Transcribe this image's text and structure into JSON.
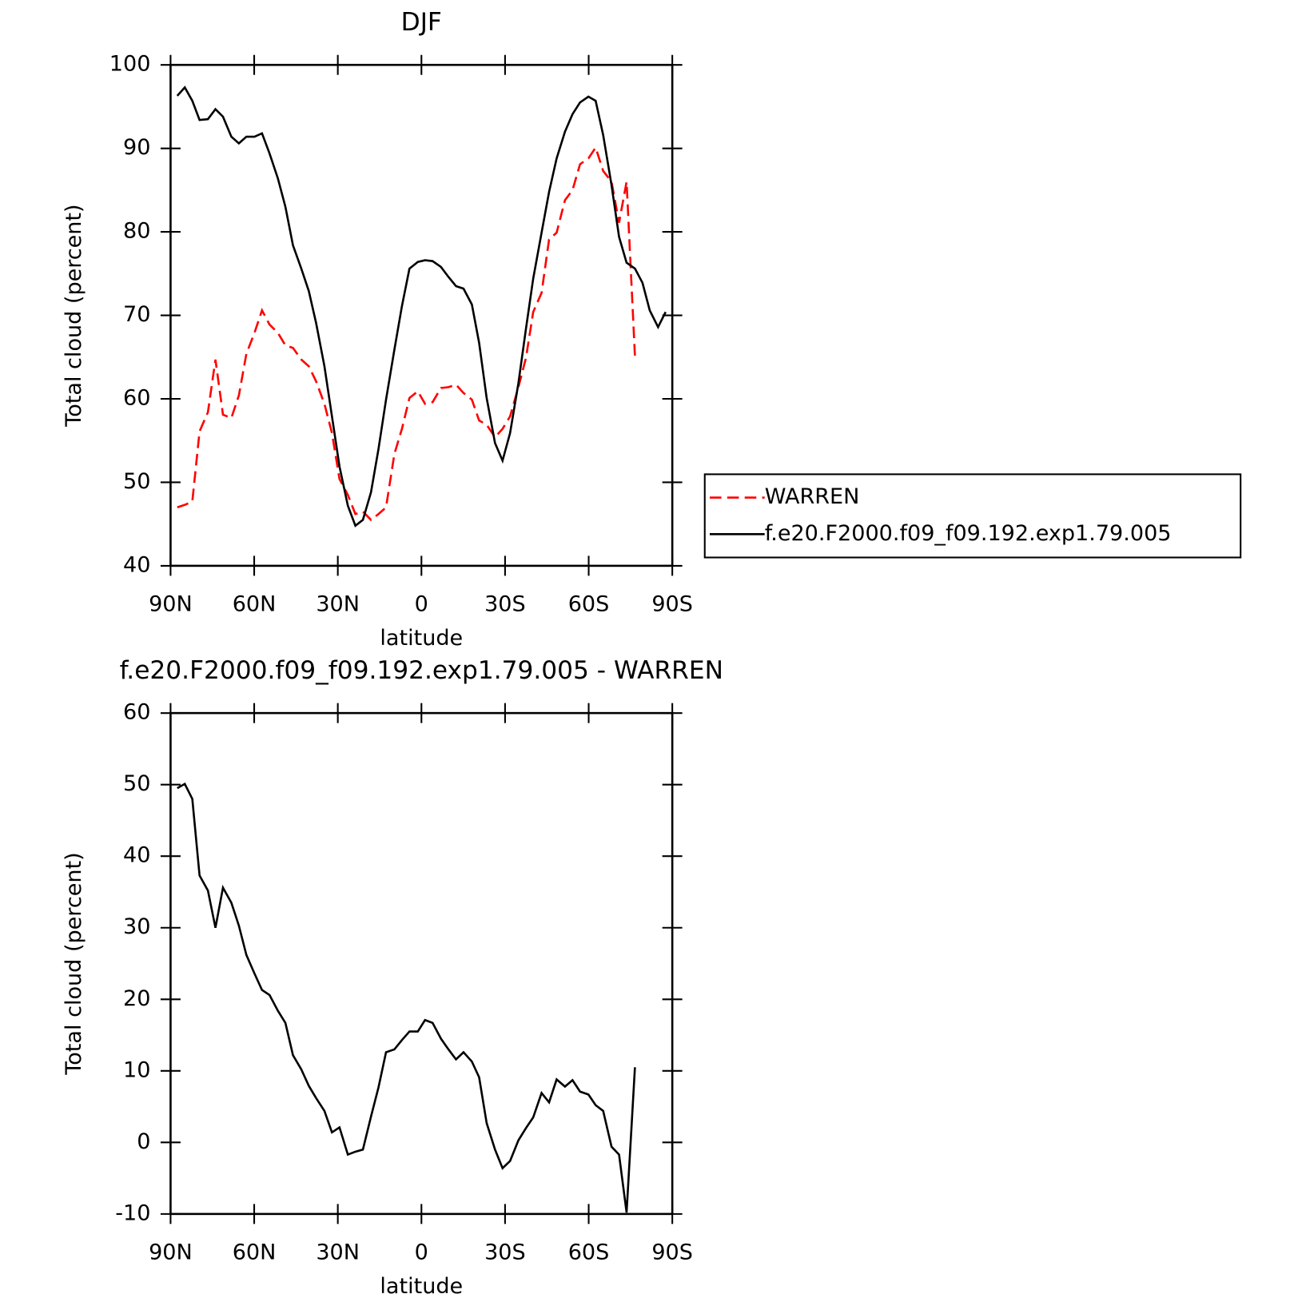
{
  "chart_data": [
    {
      "type": "line",
      "title": "DJF",
      "x_label": "latitude",
      "y_label": "Total cloud (percent)",
      "x": [
        87.6,
        84.9,
        82.2,
        79.6,
        76.6,
        73.9,
        71.2,
        68.2,
        65.5,
        62.8,
        59.9,
        57.2,
        54.5,
        51.5,
        48.8,
        46.1,
        43.1,
        40.4,
        37.8,
        34.8,
        32.1,
        29.4,
        26.4,
        23.7,
        21.0,
        18.1,
        15.4,
        12.7,
        9.7,
        7.0,
        4.3,
        1.3,
        -1.3,
        -4.0,
        -7.0,
        -9.7,
        -12.4,
        -15.1,
        -18.1,
        -20.7,
        -23.4,
        -26.4,
        -29.1,
        -31.8,
        -34.8,
        -37.5,
        -40.1,
        -43.1,
        -45.8,
        -48.5,
        -51.5,
        -54.2,
        -56.9,
        -59.9,
        -62.5,
        -65.2,
        -68.2,
        -70.9,
        -73.6,
        -76.6,
        -79.3,
        -81.9,
        -84.9,
        -87.6
      ],
      "series": [
        {
          "name": "WARREN",
          "color": "#ff0000",
          "style": "dashed",
          "values": [
            47.0,
            47.3,
            47.7,
            56.1,
            58.4,
            64.7,
            58.1,
            57.7,
            60.4,
            65.4,
            67.9,
            70.6,
            68.9,
            67.9,
            66.4,
            66.1,
            64.7,
            63.9,
            62.1,
            59.4,
            55.9,
            50.4,
            48.5,
            46.2,
            46.5,
            45.5,
            46.2,
            47.0,
            53.4,
            56.4,
            60.1,
            60.9,
            59.4,
            59.6,
            61.3,
            61.4,
            61.7,
            60.7,
            59.9,
            57.4,
            56.9,
            55.4,
            56.4,
            57.9,
            61.4,
            64.9,
            70.4,
            72.7,
            79.1,
            79.9,
            83.8,
            85.0,
            88.1,
            88.8,
            90.1,
            87.3,
            86.0,
            81.1,
            86.0,
            65.1,
            null,
            null,
            null,
            null
          ]
        },
        {
          "name": "f.e20.F2000.f09_f09.192.exp1.79.005",
          "color": "#000000",
          "style": "solid",
          "values": [
            96.3,
            97.3,
            95.7,
            93.4,
            93.5,
            94.7,
            93.8,
            91.4,
            90.6,
            91.4,
            91.4,
            91.8,
            89.4,
            86.4,
            83.0,
            78.4,
            75.6,
            72.9,
            69.1,
            63.9,
            57.9,
            51.9,
            47.2,
            44.8,
            45.5,
            48.8,
            54.0,
            59.9,
            65.9,
            71.1,
            75.6,
            76.4,
            76.6,
            76.5,
            75.8,
            74.6,
            73.5,
            73.2,
            71.3,
            66.7,
            60.1,
            54.7,
            52.6,
            55.9,
            61.9,
            68.4,
            74.4,
            79.9,
            84.8,
            88.8,
            92.0,
            94.1,
            95.5,
            96.2,
            95.7,
            91.6,
            85.6,
            79.4,
            76.3,
            75.6,
            73.9,
            70.6,
            68.6,
            70.4
          ]
        }
      ],
      "xlim": [
        90,
        -90
      ],
      "xticks": [
        {
          "value": 90,
          "label": "90N"
        },
        {
          "value": 60,
          "label": "60N"
        },
        {
          "value": 30,
          "label": "30N"
        },
        0,
        {
          "value": -30,
          "label": "30S"
        },
        {
          "value": -60,
          "label": "60S"
        },
        {
          "value": -90,
          "label": "90S"
        }
      ],
      "ylim": [
        40,
        100
      ],
      "yticks": [
        40,
        50,
        60,
        70,
        80,
        90,
        100
      ],
      "legend": "right"
    },
    {
      "type": "line",
      "title": "f.e20.F2000.f09_f09.192.exp1.79.005 - WARREN",
      "x_label": "latitude",
      "y_label": "Total cloud (percent)",
      "x": [
        87.6,
        84.9,
        82.2,
        79.6,
        76.6,
        73.9,
        71.2,
        68.2,
        65.5,
        62.8,
        59.9,
        57.2,
        54.5,
        51.5,
        48.8,
        46.1,
        43.1,
        40.4,
        37.8,
        34.8,
        32.1,
        29.4,
        26.4,
        23.7,
        21.0,
        18.1,
        15.4,
        12.7,
        9.7,
        7.0,
        4.3,
        1.3,
        -1.3,
        -4.0,
        -7.0,
        -9.7,
        -12.4,
        -15.1,
        -18.1,
        -20.7,
        -23.4,
        -26.4,
        -29.1,
        -31.8,
        -34.8,
        -37.5,
        -40.1,
        -43.1,
        -45.8,
        -48.5,
        -51.5,
        -54.2,
        -56.9,
        -59.9,
        -62.5,
        -65.2,
        -68.2,
        -70.9,
        -73.6,
        -76.6,
        -79.3,
        -81.9,
        -84.9,
        -87.6
      ],
      "series": [
        {
          "color": "#000000",
          "style": "solid",
          "values": [
            49.5,
            50.1,
            48.0,
            37.3,
            35.2,
            30.0,
            35.6,
            33.5,
            30.3,
            26.2,
            23.6,
            21.3,
            20.6,
            18.4,
            16.7,
            12.2,
            10.2,
            7.9,
            6.2,
            4.4,
            1.4,
            2.1,
            -1.7,
            -1.3,
            -1.0,
            3.6,
            7.7,
            12.6,
            13.0,
            14.3,
            15.5,
            15.5,
            17.1,
            16.7,
            14.5,
            13.0,
            11.6,
            12.6,
            11.3,
            9.1,
            2.7,
            -1.0,
            -3.6,
            -2.6,
            0.3,
            2.0,
            3.5,
            6.9,
            5.6,
            8.8,
            7.8,
            8.7,
            7.1,
            6.7,
            5.2,
            4.4,
            -0.6,
            -1.7,
            -9.8,
            10.5,
            null,
            null,
            null,
            null
          ]
        }
      ],
      "xlim": [
        90,
        -90
      ],
      "xticks": [
        {
          "value": 90,
          "label": "90N"
        },
        {
          "value": 60,
          "label": "60N"
        },
        {
          "value": 30,
          "label": "30N"
        },
        0,
        {
          "value": -30,
          "label": "30S"
        },
        {
          "value": -60,
          "label": "60S"
        },
        {
          "value": -90,
          "label": "90S"
        }
      ],
      "ylim": [
        -10,
        60
      ],
      "yticks": [
        -10,
        0,
        10,
        20,
        30,
        40,
        50,
        60
      ]
    }
  ]
}
